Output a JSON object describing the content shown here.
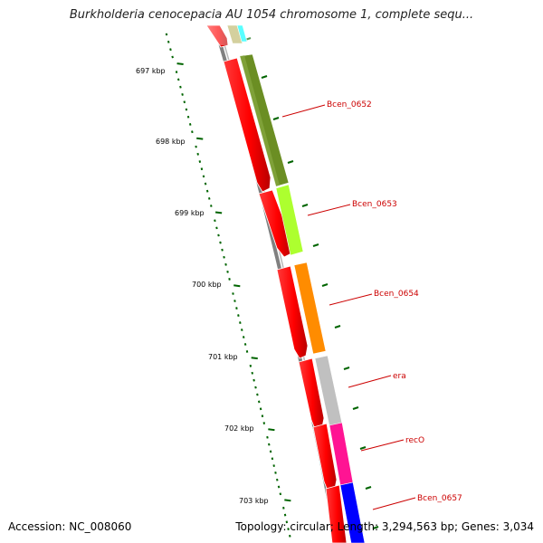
{
  "title": "Burkholderia cenocepacia AU 1054 chromosome 1, complete sequ...",
  "footer": {
    "accession": "Accession: NC_008060",
    "summary": "Topology: circular; Length: 3,294,563 bp; Genes: 3,034"
  },
  "ticks": [
    {
      "label": "697 kbp"
    },
    {
      "label": "698 kbp"
    },
    {
      "label": "699 kbp"
    },
    {
      "label": "700 kbp"
    },
    {
      "label": "701 kbp"
    },
    {
      "label": "702 kbp"
    },
    {
      "label": "703 kbp"
    }
  ],
  "gene_labels": [
    {
      "name": "Bcen_0652"
    },
    {
      "name": "Bcen_0653"
    },
    {
      "name": "Bcen_0654"
    },
    {
      "name": "era"
    },
    {
      "name": "recO"
    },
    {
      "name": "Bcen_0657"
    }
  ],
  "colors": {
    "forward_strand": "#ff0000",
    "backbone": "#808080",
    "tick_marks": "#006400",
    "gene_label": "#cc0000",
    "Bcen_0652": "#6b8e23",
    "Bcen_0653": "#adff2f",
    "Bcen_0654": "#ff8c00",
    "era": "#c0c0c0",
    "recO": "#ff1493",
    "Bcen_0657": "#0000ff",
    "top_partial_1": "#bdb76b",
    "top_partial_2": "#00ffff"
  }
}
